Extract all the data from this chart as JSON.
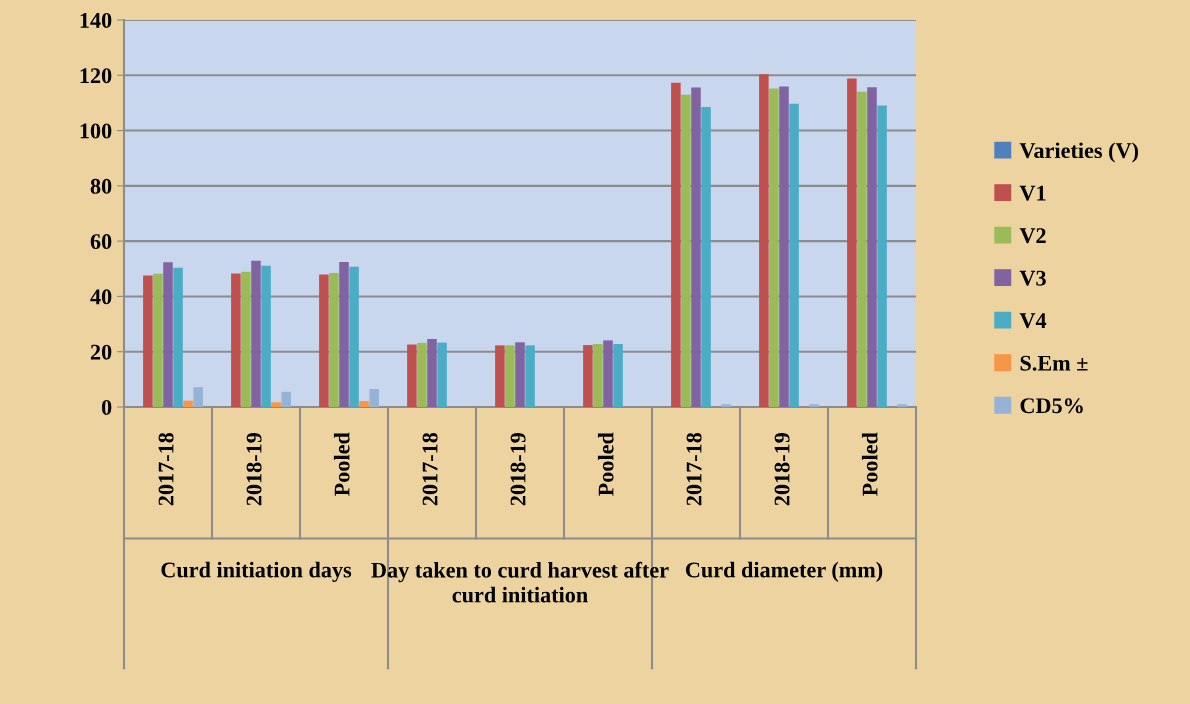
{
  "chart_data": {
    "type": "bar",
    "categories": [
      "2017-18",
      "2018-19",
      "Pooled",
      "2017-18",
      "2018-19",
      "Pooled",
      "2017-18",
      "2018-19",
      "Pooled"
    ],
    "annotations": [
      "Curd initiation days",
      "Day taken to curd harvest after curd initiation",
      "Curd diameter (mm)"
    ],
    "series": [
      {
        "name": "Varieties (V)",
        "color": "#4f81bd",
        "values": [
          null,
          null,
          null,
          null,
          null,
          null,
          null,
          null,
          null
        ]
      },
      {
        "name": "V1",
        "color": "#c0504d",
        "values": [
          47.6,
          48.3,
          47.9,
          22.6,
          22.3,
          22.4,
          117.3,
          120.4,
          118.8
        ]
      },
      {
        "name": "V2",
        "color": "#9bbb59",
        "values": [
          48.2,
          48.9,
          48.5,
          23.2,
          22.3,
          22.8,
          113.0,
          115.2,
          114.0
        ]
      },
      {
        "name": "V3",
        "color": "#8064a2",
        "values": [
          52.4,
          52.9,
          52.5,
          24.6,
          23.4,
          24.1,
          115.6,
          115.9,
          115.7
        ]
      },
      {
        "name": "V4",
        "color": "#4bacc6",
        "values": [
          50.4,
          51.1,
          50.7,
          23.3,
          22.3,
          22.8,
          108.5,
          109.7,
          109.1
        ]
      },
      {
        "name": "S.Em ±",
        "color": "#f79646",
        "values": [
          2.3,
          1.7,
          2.1,
          null,
          null,
          null,
          null,
          null,
          null
        ]
      },
      {
        "name": "CD5%",
        "color": "#95b3d7",
        "values": [
          7.2,
          5.5,
          6.5,
          null,
          null,
          null,
          1.0,
          1.0,
          1.0
        ]
      }
    ],
    "ylim": [
      0,
      140
    ],
    "yticks": [
      0,
      20,
      40,
      60,
      80,
      100,
      120,
      140
    ],
    "grid": "y",
    "legend": "right"
  }
}
